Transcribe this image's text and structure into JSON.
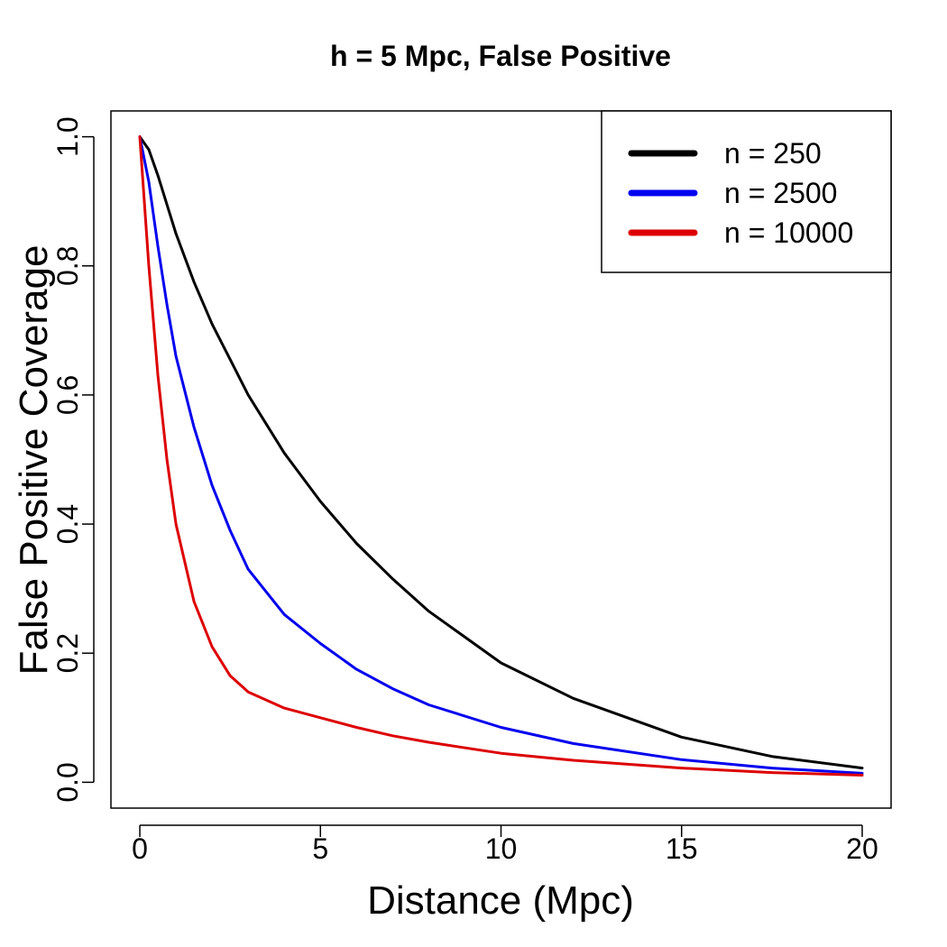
{
  "chart_data": {
    "type": "line",
    "title": "h = 5 Mpc, False Positive",
    "xlabel": "Distance (Mpc)",
    "ylabel": "False Positive Coverage",
    "xlim": [
      -0.8,
      20.8
    ],
    "ylim": [
      -0.04,
      1.04
    ],
    "xticks": [
      0,
      5,
      10,
      15,
      20
    ],
    "xtick_labels": [
      "0",
      "5",
      "10",
      "15",
      "20"
    ],
    "yticks": [
      0.0,
      0.2,
      0.4,
      0.6,
      0.8,
      1.0
    ],
    "ytick_labels": [
      "0.0",
      "0.2",
      "0.4",
      "0.6",
      "0.8",
      "1.0"
    ],
    "grid": false,
    "legend_position": "top-right",
    "x": [
      0,
      0.25,
      0.5,
      0.75,
      1,
      1.5,
      2,
      2.5,
      3,
      4,
      5,
      6,
      7,
      8,
      10,
      12,
      15,
      17.5,
      20
    ],
    "series": [
      {
        "name": "n = 250",
        "color": "#000000",
        "values": [
          1.0,
          0.98,
          0.94,
          0.895,
          0.85,
          0.775,
          0.71,
          0.655,
          0.6,
          0.51,
          0.435,
          0.37,
          0.315,
          0.265,
          0.185,
          0.13,
          0.07,
          0.04,
          0.022
        ]
      },
      {
        "name": "n = 2500",
        "color": "#0000ee",
        "values": [
          1.0,
          0.93,
          0.83,
          0.74,
          0.66,
          0.55,
          0.46,
          0.39,
          0.33,
          0.26,
          0.215,
          0.175,
          0.145,
          0.12,
          0.085,
          0.06,
          0.035,
          0.022,
          0.014
        ]
      },
      {
        "name": "n = 10000",
        "color": "#dd0000",
        "values": [
          1.0,
          0.8,
          0.63,
          0.5,
          0.4,
          0.28,
          0.21,
          0.165,
          0.14,
          0.115,
          0.1,
          0.085,
          0.072,
          0.062,
          0.045,
          0.034,
          0.022,
          0.015,
          0.011
        ]
      }
    ]
  }
}
